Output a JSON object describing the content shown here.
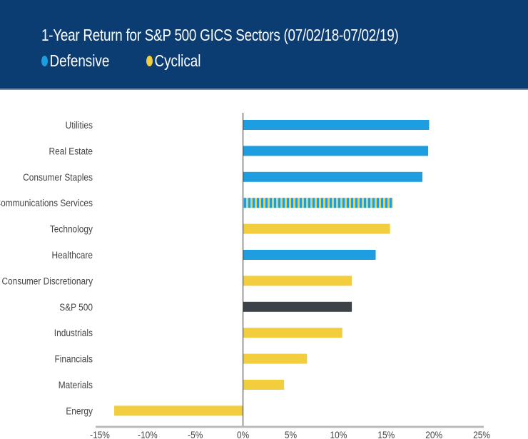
{
  "chart_data": {
    "type": "bar",
    "orientation": "horizontal",
    "title": "1-Year Return for S&P 500 GICS Sectors (07/02/18-07/02/19)",
    "legend": [
      {
        "name": "Defensive",
        "color": "#1e9ee0"
      },
      {
        "name": "Cyclical",
        "color": "#f2cd3e"
      }
    ],
    "legend_placement": "top-left",
    "categories": [
      "Utilities",
      "Real Estate",
      "Consumer Staples",
      "Communications Services",
      "Technology",
      "Healthcare",
      "Consumer Discretionary",
      "S&P 500",
      "Industrials",
      "Financials",
      "Materials",
      "Energy"
    ],
    "values": [
      19.5,
      19.4,
      18.8,
      15.7,
      15.4,
      13.9,
      11.4,
      11.4,
      10.4,
      6.7,
      4.3,
      -13.5
    ],
    "groups": [
      "Defensive",
      "Defensive",
      "Defensive",
      "Mixed",
      "Cyclical",
      "Defensive",
      "Cyclical",
      "Index",
      "Cyclical",
      "Cyclical",
      "Cyclical",
      "Cyclical"
    ],
    "colors": {
      "Defensive": "#1e9ee0",
      "Cyclical": "#f2cd3e",
      "Index": "#3d4248"
    },
    "xlim": [
      -15,
      25
    ],
    "xticks": [
      "-15%",
      "-10%",
      "-5%",
      "0%",
      "5%",
      "10%",
      "15%",
      "20%",
      "25%"
    ],
    "xtick_values": [
      -15,
      -10,
      -5,
      0,
      5,
      10,
      15,
      20,
      25
    ],
    "grid": false
  }
}
